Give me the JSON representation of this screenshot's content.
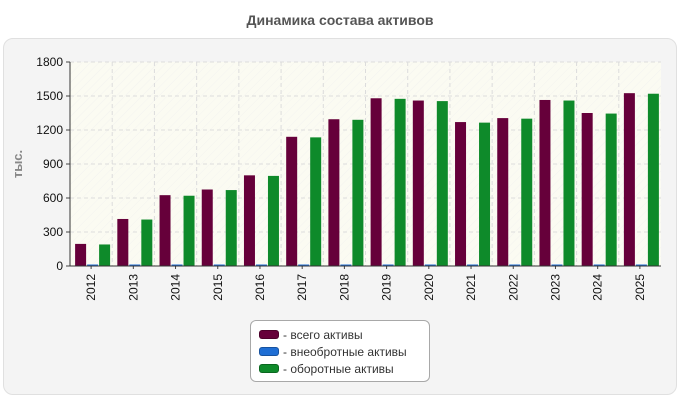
{
  "chart_data": {
    "type": "bar",
    "title": "Динамика состава активов",
    "ylabel": "тыс.",
    "xlabel": "",
    "ylim": [
      0,
      1800
    ],
    "yticks": [
      0,
      300,
      600,
      900,
      1200,
      1500,
      1800
    ],
    "grid": true,
    "legend_position": "bottom",
    "categories": [
      "2012",
      "2013",
      "2014",
      "2015",
      "2016",
      "2017",
      "2018",
      "2019",
      "2020",
      "2021",
      "2022",
      "2023",
      "2024",
      "2025"
    ],
    "series": [
      {
        "name": "- всего активы",
        "color": "#66003a",
        "values": [
          195,
          415,
          625,
          675,
          800,
          1140,
          1295,
          1480,
          1460,
          1270,
          1305,
          1465,
          1350,
          1525
        ]
      },
      {
        "name": "- внеобротные активы",
        "color": "#1f6ed4",
        "values": [
          5,
          5,
          5,
          5,
          5,
          5,
          5,
          5,
          5,
          5,
          5,
          5,
          5,
          5
        ]
      },
      {
        "name": "- оборотные активы",
        "color": "#0e8a2a",
        "values": [
          190,
          410,
          620,
          670,
          795,
          1135,
          1290,
          1475,
          1455,
          1265,
          1300,
          1460,
          1345,
          1520
        ]
      }
    ]
  }
}
